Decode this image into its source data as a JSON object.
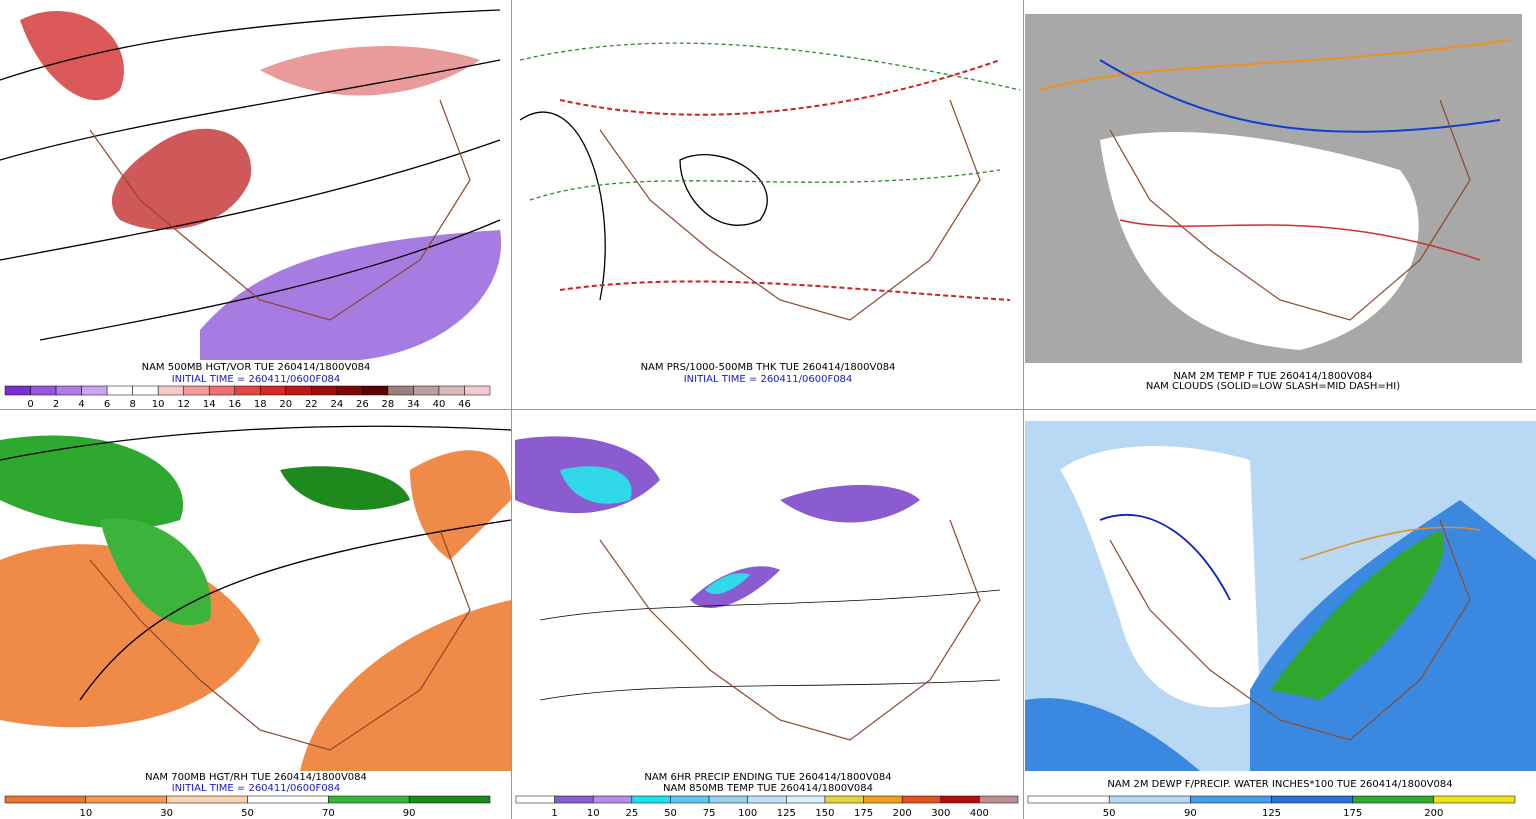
{
  "panels": [
    {
      "caption": [
        "NAM 500MB HGT/VOR TUE 260414/1800V084",
        "INITIAL TIME = 260411/0600F084"
      ],
      "colorbar": {
        "labels": [
          0,
          2,
          4,
          6,
          8,
          10,
          12,
          14,
          16,
          18,
          20,
          22,
          24,
          26,
          28,
          34,
          40,
          46
        ],
        "colors": [
          "#7b2fd0",
          "#9a55e0",
          "#b07ae8",
          "#c9a6f0",
          "#ffffff",
          "#ffffff",
          "#f7c8c8",
          "#f29a9a",
          "#ec6f6f",
          "#e04848",
          "#d02a2a",
          "#b81a1a",
          "#9c0f0f",
          "#7d0808",
          "#5e0000",
          "#9a8080",
          "#b8a0a0",
          "#d8b8b8",
          "#f4c8d0"
        ]
      }
    },
    {
      "caption": [
        "NAM PRS/1000-500MB THK TUE 260414/1800V084",
        "INITIAL TIME = 260411/0600F084"
      ]
    },
    {
      "caption": [
        "NAM 2M TEMP F TUE 260414/1800V084",
        "NAM CLOUDS (SOLID=LOW SLASH=MID DASH=HI)"
      ]
    },
    {
      "caption": [
        "NAM 700MB HGT/RH TUE 260414/1800V084",
        "INITIAL TIME = 260411/0600F084"
      ],
      "colorbar": {
        "labels": [
          10,
          30,
          50,
          70,
          90
        ],
        "colors": [
          "#e8763a",
          "#f29a5c",
          "#fbd2b0",
          "#ffffff",
          "#3cb43c",
          "#1e8a1e"
        ]
      }
    },
    {
      "caption": [
        "NAM 6HR PRECIP ENDING TUE 260414/1800V084",
        "NAM 850MB TEMP TUE 260414/1800V084"
      ],
      "colorbar": {
        "labels": [
          1,
          10,
          25,
          50,
          75,
          100,
          125,
          150,
          175,
          200,
          300,
          400
        ],
        "colors": [
          "#ffffff",
          "#8a5cd0",
          "#b090e8",
          "#20e0f0",
          "#60c8f0",
          "#9ad0f0",
          "#c0e0f8",
          "#e0f0f8",
          "#e8d040",
          "#f0a020",
          "#e05020",
          "#b01010",
          "#c09090"
        ]
      }
    },
    {
      "caption": [
        "NAM 2M DEWP F/PRECIP. WATER INCHES*100 TUE 260414/1800V084"
      ],
      "colorbar": {
        "labels": [
          50,
          90,
          125,
          175,
          200
        ],
        "colors": [
          "#ffffff",
          "#b8d8f4",
          "#4a9ae8",
          "#2a70d8",
          "#30a830",
          "#f0e020"
        ]
      }
    }
  ]
}
